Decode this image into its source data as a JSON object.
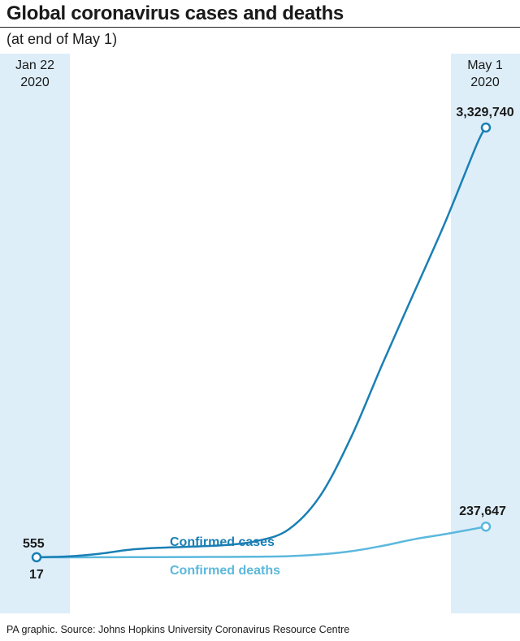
{
  "title": "Global coronavirus cases and deaths",
  "subtitle": "(at end of May 1)",
  "footer": "PA graphic. Source: Johns Hopkins University Coronavirus Resource Centre",
  "colors": {
    "cases": "#1a7fb5",
    "deaths": "#5bb8dd",
    "band": "#ddeef9",
    "text": "#1a1a1a"
  },
  "chart_data": {
    "type": "line",
    "x_start_label": [
      "Jan 22",
      "2020"
    ],
    "x_end_label": [
      "May 1",
      "2020"
    ],
    "x": [
      "2020-01-22",
      "2020-01-29",
      "2020-02-05",
      "2020-02-12",
      "2020-02-19",
      "2020-02-26",
      "2020-03-04",
      "2020-03-11",
      "2020-03-18",
      "2020-03-25",
      "2020-04-01",
      "2020-04-08",
      "2020-04-15",
      "2020-04-22",
      "2020-04-29",
      "2020-05-01"
    ],
    "ylim": [
      0,
      3329740
    ],
    "grid": false,
    "legend": "inline labels",
    "series": [
      {
        "name": "Confirmed cases",
        "values": [
          555,
          7000,
          28000,
          60000,
          75000,
          83000,
          95000,
          126000,
          214000,
          470000,
          930000,
          1500000,
          2050000,
          2600000,
          3200000,
          3329740
        ],
        "start_label": "555",
        "end_label": "3,329,740"
      },
      {
        "name": "Confirmed deaths",
        "values": [
          17,
          130,
          560,
          1400,
          2200,
          2800,
          3300,
          4600,
          9000,
          22000,
          47000,
          89000,
          140000,
          180000,
          225000,
          237647
        ],
        "start_label": "17",
        "end_label": "237,647"
      }
    ]
  }
}
